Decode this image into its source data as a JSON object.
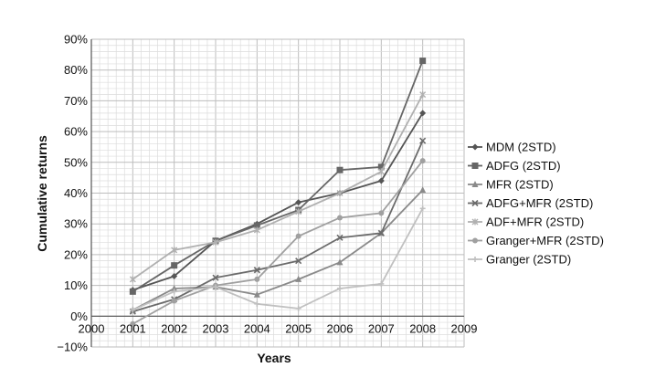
{
  "chart_data": {
    "type": "line",
    "title": "",
    "xlabel": "Years",
    "ylabel": "Cumulative returns",
    "xlim": [
      2000,
      2009
    ],
    "ylim": [
      -10,
      90
    ],
    "x_ticks": [
      "2000",
      "2001",
      "2002",
      "2003",
      "2004",
      "2005",
      "2006",
      "2007",
      "2008",
      "2009"
    ],
    "y_ticks": [
      "−10%",
      "0%",
      "10%",
      "20%",
      "30%",
      "40%",
      "50%",
      "60%",
      "70%",
      "80%",
      "90%"
    ],
    "grid": true,
    "legend_position": "right",
    "x": [
      2001,
      2002,
      2003,
      2004,
      2005,
      2006,
      2007,
      2008
    ],
    "series": [
      {
        "name": "MDM (2STD)",
        "marker": "diamond",
        "color": "#555555",
        "values": [
          8.5,
          13,
          24.5,
          30,
          37,
          40,
          44,
          66
        ]
      },
      {
        "name": "ADFG (2STD)",
        "marker": "square",
        "color": "#666666",
        "values": [
          8,
          16.5,
          24.5,
          29.5,
          34.5,
          47.5,
          48.5,
          83
        ]
      },
      {
        "name": "MFR (2STD)",
        "marker": "triangle",
        "color": "#8a8a8a",
        "values": [
          2,
          9,
          9.5,
          7,
          12,
          17.5,
          27,
          41
        ]
      },
      {
        "name": "ADFG+MFR  (2STD)",
        "marker": "x",
        "color": "#6b6b6b",
        "values": [
          1.5,
          5.5,
          12.5,
          15,
          18,
          25.5,
          27,
          57
        ]
      },
      {
        "name": "ADF+MFR (2STD)",
        "marker": "star",
        "color": "#b0b0b0",
        "values": [
          12,
          21.5,
          24,
          28,
          34,
          40,
          47,
          72
        ]
      },
      {
        "name": "Granger+MFR (2STD)",
        "marker": "circle",
        "color": "#a0a0a0",
        "values": [
          -2.5,
          5,
          10,
          12,
          26,
          32,
          33.5,
          50.5
        ]
      },
      {
        "name": "Granger (2STD)",
        "marker": "plus",
        "color": "#c0c0c0",
        "values": [
          2,
          8,
          9.5,
          4,
          2.5,
          9,
          10.5,
          35
        ]
      }
    ]
  }
}
